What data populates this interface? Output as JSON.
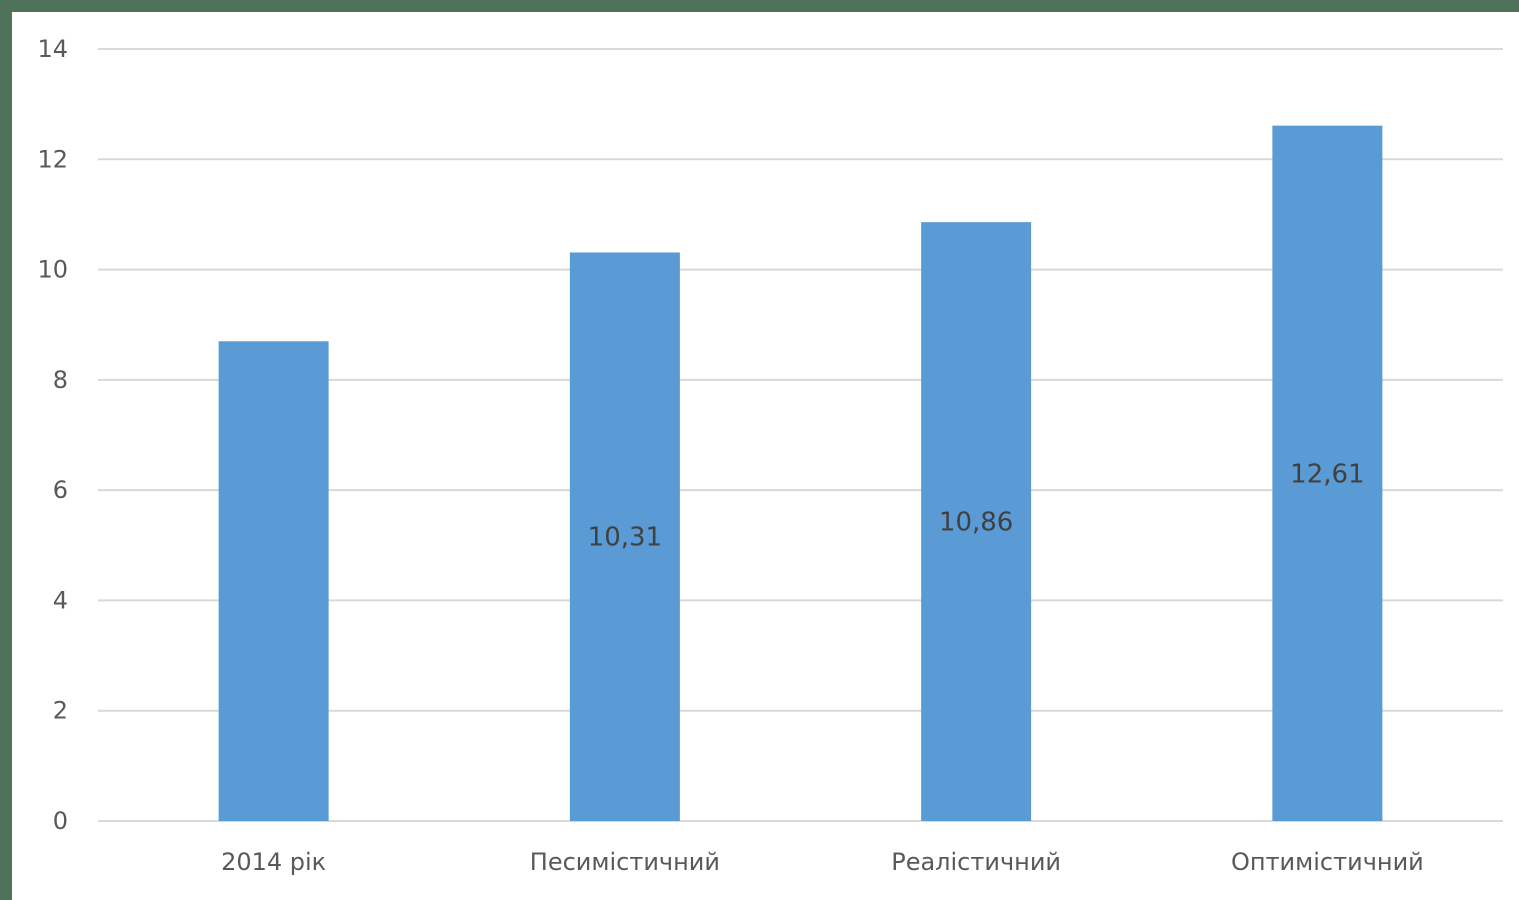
{
  "chart_data": {
    "type": "bar",
    "categories": [
      "2014 рік",
      "Песимістичний",
      "Реалістичний",
      "Оптимістичний"
    ],
    "values": [
      8.7,
      10.31,
      10.86,
      12.61
    ],
    "data_labels": [
      "",
      "10,31",
      "10,86",
      "12,61"
    ],
    "title": "",
    "xlabel": "",
    "ylabel": "",
    "ylim": [
      0,
      14
    ],
    "yticks": [
      0,
      2,
      4,
      6,
      8,
      10,
      12,
      14
    ],
    "ytick_labels": [
      "0",
      "2",
      "4",
      "6",
      "8",
      "10",
      "12",
      "14"
    ],
    "grid": true,
    "legend": "none",
    "bar_color": "#5b9bd5",
    "gridline_color": "#d9d9d9",
    "frame_color": "#4f7358"
  }
}
